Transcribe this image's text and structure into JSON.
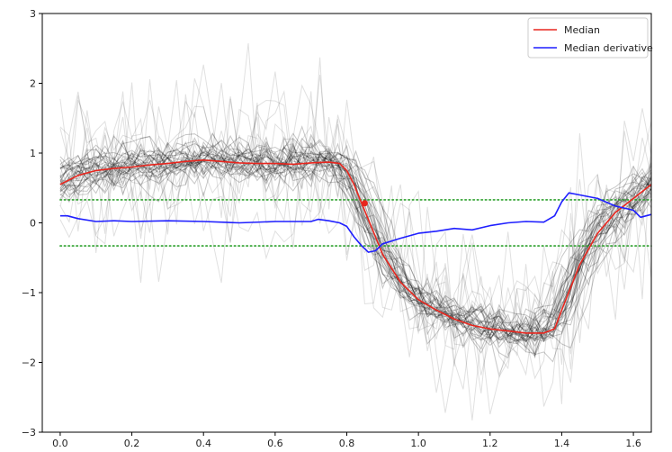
{
  "chart_data": {
    "type": "line",
    "title": "",
    "xlabel": "",
    "ylabel": "",
    "xlim": [
      -0.05,
      1.65
    ],
    "ylim": [
      -3,
      3
    ],
    "grid": false,
    "legend_position": "top-right",
    "x_ticks": [
      0.0,
      0.2,
      0.4,
      0.6,
      0.8,
      1.0,
      1.2,
      1.4,
      1.6
    ],
    "x_tick_labels": [
      "0.0",
      "0.2",
      "0.4",
      "0.6",
      "0.8",
      "1.0",
      "1.2",
      "1.4",
      "1.6"
    ],
    "y_ticks": [
      -3,
      -2,
      -1,
      0,
      1,
      2,
      3
    ],
    "y_tick_labels": [
      "−3",
      "−2",
      "−1",
      "0",
      "1",
      "2",
      "3"
    ],
    "colors": {
      "median": "#e8261e",
      "derivative": "#1f1fff",
      "threshold": "#2ca02c",
      "individual": "#000000"
    },
    "series": [
      {
        "name": "Median",
        "color": "#e8261e",
        "x": [
          0.0,
          0.05,
          0.1,
          0.15,
          0.2,
          0.25,
          0.3,
          0.35,
          0.4,
          0.45,
          0.5,
          0.55,
          0.6,
          0.65,
          0.7,
          0.75,
          0.78,
          0.8,
          0.82,
          0.84,
          0.86,
          0.88,
          0.9,
          0.95,
          1.0,
          1.05,
          1.1,
          1.15,
          1.2,
          1.25,
          1.3,
          1.35,
          1.38,
          1.4,
          1.45,
          1.5,
          1.55,
          1.6,
          1.65
        ],
        "y": [
          0.55,
          0.68,
          0.75,
          0.78,
          0.8,
          0.83,
          0.85,
          0.88,
          0.9,
          0.88,
          0.86,
          0.85,
          0.85,
          0.84,
          0.86,
          0.87,
          0.85,
          0.75,
          0.55,
          0.3,
          0.05,
          -0.2,
          -0.45,
          -0.85,
          -1.1,
          -1.25,
          -1.38,
          -1.47,
          -1.52,
          -1.55,
          -1.58,
          -1.58,
          -1.52,
          -1.25,
          -0.6,
          -0.15,
          0.15,
          0.35,
          0.55
        ]
      },
      {
        "name": "Median derivative",
        "color": "#1f1fff",
        "x": [
          0.0,
          0.02,
          0.05,
          0.1,
          0.15,
          0.2,
          0.3,
          0.4,
          0.5,
          0.6,
          0.7,
          0.72,
          0.75,
          0.78,
          0.8,
          0.82,
          0.84,
          0.86,
          0.88,
          0.9,
          0.95,
          1.0,
          1.05,
          1.1,
          1.15,
          1.2,
          1.25,
          1.3,
          1.35,
          1.38,
          1.4,
          1.42,
          1.45,
          1.5,
          1.55,
          1.6,
          1.62,
          1.65
        ],
        "y": [
          0.1,
          0.1,
          0.06,
          0.02,
          0.03,
          0.02,
          0.03,
          0.02,
          0.0,
          0.02,
          0.02,
          0.05,
          0.03,
          0.0,
          -0.05,
          -0.2,
          -0.32,
          -0.42,
          -0.4,
          -0.3,
          -0.22,
          -0.15,
          -0.12,
          -0.08,
          -0.1,
          -0.04,
          0.0,
          0.02,
          0.01,
          0.1,
          0.3,
          0.43,
          0.4,
          0.35,
          0.24,
          0.18,
          0.08,
          0.12
        ]
      },
      {
        "x": [
          0.0,
          1.65
        ],
        "y": [
          0.33,
          0.33
        ],
        "color": "#2ca02c",
        "style": "dotted"
      },
      {
        "x": [
          0.0,
          1.65
        ],
        "y": [
          -0.33,
          -0.33
        ],
        "color": "#2ca02c",
        "style": "dotted"
      }
    ],
    "individual_curves_count": 40,
    "marker_point": {
      "x": 0.85,
      "y": 0.28,
      "color": "#e8261e"
    }
  }
}
